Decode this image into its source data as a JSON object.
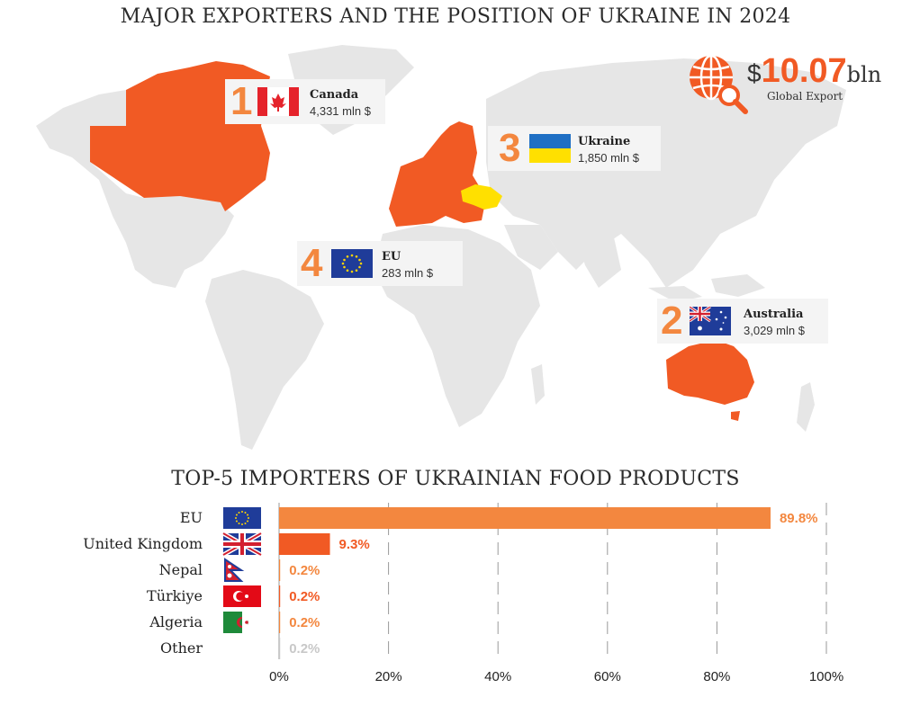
{
  "header": {
    "title": "MAJOR EXPORTERS AND THE POSITION OF UKRAINE IN 2024"
  },
  "total": {
    "currency": "$",
    "value": "10.07",
    "unit": "bln",
    "label": "Global Export"
  },
  "exporters": [
    {
      "rank": "1",
      "country": "Canada",
      "value": "4,331 mln $",
      "flag": "canada-flag"
    },
    {
      "rank": "2",
      "country": "Australia",
      "value": "3,029 mln $",
      "flag": "australia-flag"
    },
    {
      "rank": "3",
      "country": "Ukraine",
      "value": "1,850 mln $",
      "flag": "ukraine-flag"
    },
    {
      "rank": "4",
      "country": "EU",
      "value": "283 mln $",
      "flag": "eu-flag"
    }
  ],
  "colors": {
    "highlight": "#f15a24",
    "ukraine": "#ffe000",
    "land": "#e6e6e6",
    "bar_orange": "#f3873f",
    "bar_red": "#f15a24",
    "other": "#c8c8c8"
  },
  "chart_data": {
    "type": "bar",
    "title": "TOP-5 IMPORTERS OF UKRAINIAN FOOD PRODUCTS",
    "orientation": "horizontal",
    "categories": [
      "EU",
      "United Kingdom",
      "Nepal",
      "Türkiye",
      "Algeria",
      "Other"
    ],
    "values": [
      89.8,
      9.3,
      0.2,
      0.2,
      0.2,
      0.2
    ],
    "value_labels": [
      "89.8%",
      "9.3%",
      "0.2%",
      "0.2%",
      "0.2%",
      "0.2%"
    ],
    "flags": [
      "eu-flag",
      "uk-flag",
      "nepal-flag",
      "turkiye-flag",
      "algeria-flag",
      ""
    ],
    "bar_colors": [
      "#f3873f",
      "#f15a24",
      "#f3873f",
      "#f15a24",
      "#f3873f",
      "#c8c8c8"
    ],
    "xlim": [
      0,
      100
    ],
    "xticks": [
      0,
      20,
      40,
      60,
      80,
      100
    ],
    "xtick_labels": [
      "0%",
      "20%",
      "40%",
      "60%",
      "80%",
      "100%"
    ],
    "grid": true
  }
}
